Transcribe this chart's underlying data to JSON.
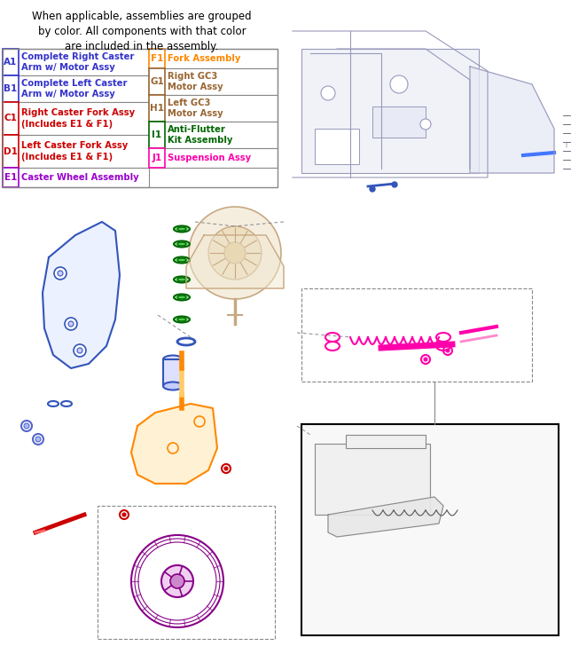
{
  "title_text": "When applicable, assemblies are grouped\nby color. All components with that color\nare included in the assembly.",
  "legend_items_left": [
    {
      "id": "A1",
      "text": "Complete Right Caster\nArm w/ Motor Assy",
      "color": "#3333cc"
    },
    {
      "id": "B1",
      "text": "Complete Left Caster\nArm w/ Motor Assy",
      "color": "#3333cc"
    },
    {
      "id": "C1",
      "text": "Right Caster Fork Assy\n(Includes E1 & F1)",
      "color": "#cc0000"
    },
    {
      "id": "D1",
      "text": "Left Caster Fork Assy\n(Includes E1 & F1)",
      "color": "#cc0000"
    },
    {
      "id": "E1",
      "text": "Caster Wheel Assembly",
      "color": "#9900cc"
    }
  ],
  "legend_items_right": [
    {
      "id": "F1",
      "text": "Fork Assembly",
      "color": "#ff8800"
    },
    {
      "id": "G1",
      "text": "Right GC3\nMotor Assy",
      "color": "#996633"
    },
    {
      "id": "H1",
      "text": "Left GC3\nMotor Assy",
      "color": "#996633"
    },
    {
      "id": "I1",
      "text": "Anti-Flutter\nKit Assembly",
      "color": "#006600"
    },
    {
      "id": "J1",
      "text": "Suspension Assy",
      "color": "#ff00aa"
    }
  ],
  "bg_color": "#ffffff",
  "border_color": "#000000",
  "id_border_colors": {
    "A1": "#3333cc",
    "B1": "#3333cc",
    "C1": "#cc0000",
    "D1": "#cc0000",
    "E1": "#9900cc",
    "F1": "#ff8800",
    "G1": "#996633",
    "H1": "#996633",
    "I1": "#006600",
    "J1": "#ff00aa"
  }
}
